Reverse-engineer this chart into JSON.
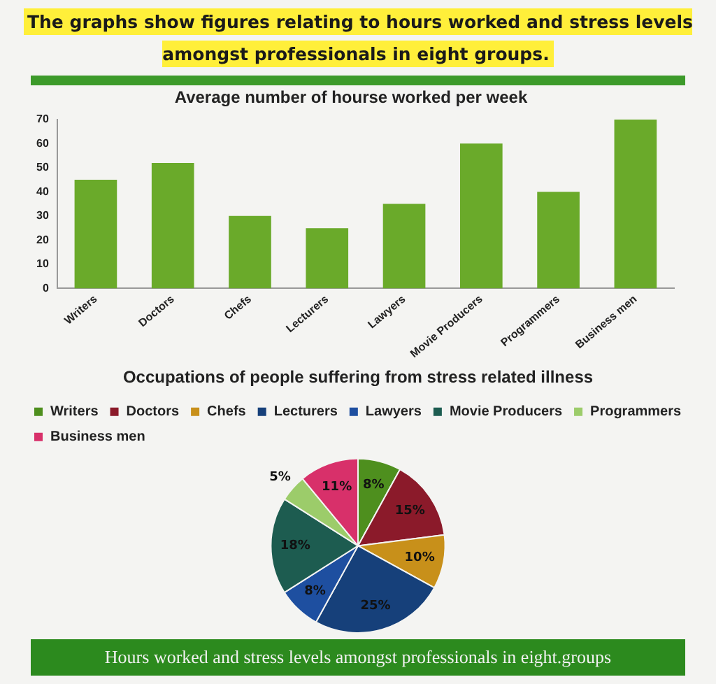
{
  "chart_data": [
    {
      "type": "bar",
      "title": "Average number of hourse worked per week",
      "annotations": [
        "The graphs show figures relating to hours worked and stress levels amongst professionals in eight groups."
      ],
      "categories": [
        "Writers",
        "Doctors",
        "Chefs",
        "Lecturers",
        "Lawyers",
        "Movie Producers",
        "Programmers",
        "Business men"
      ],
      "values": [
        45,
        52,
        30,
        25,
        35,
        60,
        40,
        70
      ],
      "color": "#6aaa2a",
      "ylim": [
        0,
        70
      ],
      "yticks": [
        0,
        10,
        20,
        30,
        40,
        50,
        60,
        70
      ],
      "grid": false,
      "legend": false
    },
    {
      "type": "pie",
      "title": "Occupations of people suffering from stress related illness",
      "annotations": [
        "Hours worked and stress levels amongst professionals in eight.groups"
      ],
      "categories": [
        "Writers",
        "Doctors",
        "Chefs",
        "Lecturers",
        "Lawyers",
        "Movie Producers",
        "Programmers",
        "Business men"
      ],
      "values": [
        8,
        15,
        10,
        25,
        8,
        18,
        5,
        11
      ],
      "colors": [
        "#4e8f1e",
        "#8b1a2a",
        "#c8901a",
        "#16407a",
        "#1e4fa0",
        "#1d5c50",
        "#9ccc6a",
        "#d8306a"
      ],
      "value_labels": [
        "8%",
        "15%",
        "10%",
        "25%",
        "8%",
        "18%",
        "5%",
        "11%"
      ],
      "legend": "top"
    }
  ]
}
